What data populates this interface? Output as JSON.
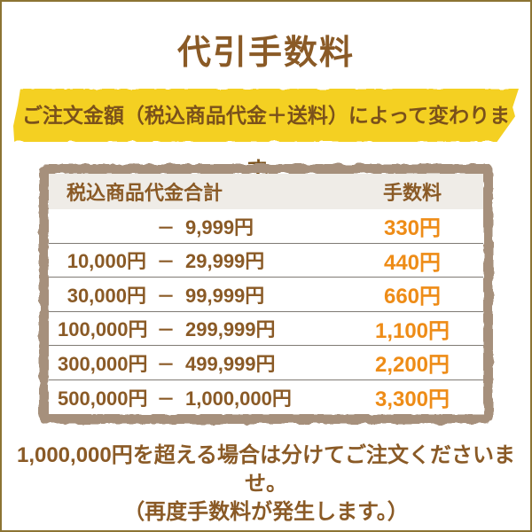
{
  "page": {
    "title": "代引手数料",
    "banner": "ご注文金額（税込商品代金＋送料）によって変わります。",
    "footer_line1": "1,000,000円を超える場合は分けてご注文くださいませ。",
    "footer_line2": "（再度手数料が発生します。）"
  },
  "table": {
    "headers": {
      "range": "税込商品代金合計",
      "fee": "手数料"
    },
    "rows": [
      {
        "lo": "",
        "dash": "－",
        "hi": "9,999円",
        "fee": "330円"
      },
      {
        "lo": "10,000円",
        "dash": "－",
        "hi": "29,999円",
        "fee": "440円"
      },
      {
        "lo": "30,000円",
        "dash": "－",
        "hi": "99,999円",
        "fee": "660円"
      },
      {
        "lo": "100,000円",
        "dash": "－",
        "hi": "299,999円",
        "fee": "1,100円"
      },
      {
        "lo": "300,000円",
        "dash": "－",
        "hi": "499,999円",
        "fee": "2,200円"
      },
      {
        "lo": "500,000円",
        "dash": "－",
        "hi": "1,000,000円",
        "fee": "3,300円"
      }
    ]
  },
  "colors": {
    "page_border": "#8c7433",
    "brown": "#8a5a26",
    "banner_text": "#7a511b",
    "yellow": "#f4d024",
    "taupe": "#a6907c",
    "headbg": "#efece7",
    "sep": "#7f7a74",
    "orange": "#ee8c17"
  }
}
